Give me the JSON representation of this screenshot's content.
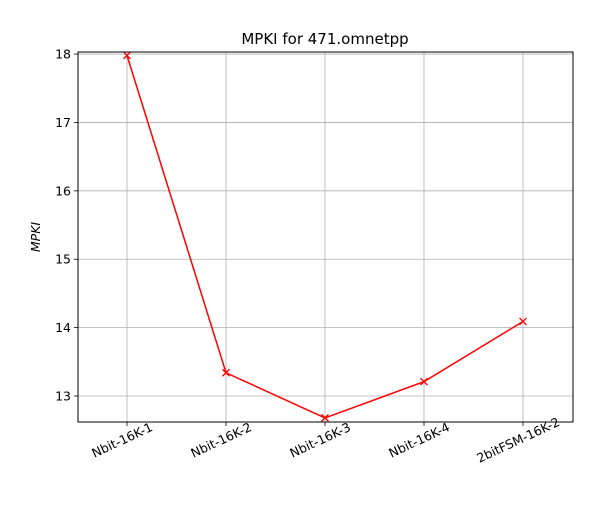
{
  "chart_data": {
    "type": "line",
    "title": "MPKI for 471.omnetpp",
    "xlabel": "",
    "ylabel": "MPKI",
    "categories": [
      "Nbit-16K-1",
      "Nbit-16K-2",
      "Nbit-16K-3",
      "Nbit-16K-4",
      "2bitFSM-16K-2"
    ],
    "series": [
      {
        "values": [
          17.98,
          13.34,
          12.68,
          13.21,
          14.09
        ],
        "color": "#ff0000",
        "marker": "x"
      }
    ],
    "ylim": [
      12.62,
      18.03
    ],
    "yticks": [
      "13",
      "14",
      "15",
      "16",
      "17",
      "18"
    ],
    "grid": true,
    "legend": "none"
  }
}
